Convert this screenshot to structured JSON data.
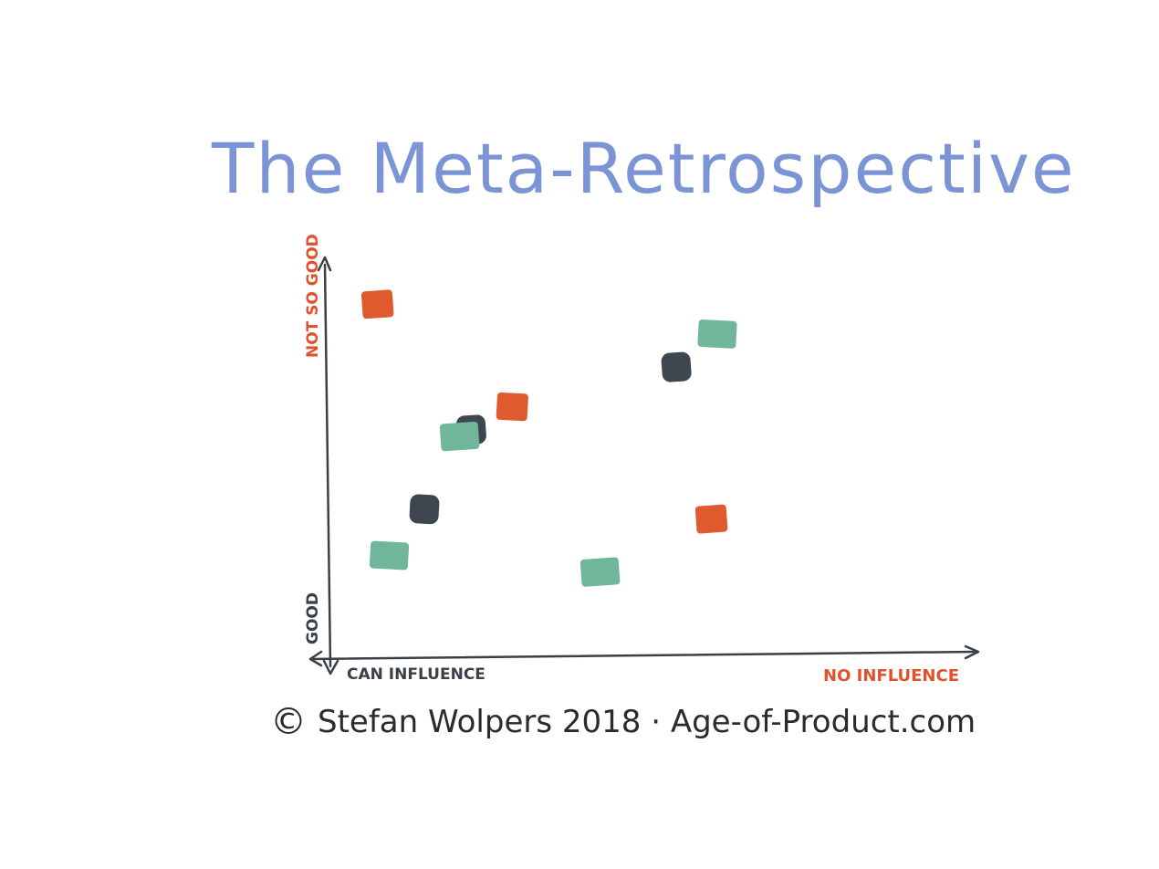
{
  "title": "The Meta-Retrospective",
  "copyright_symbol": "©",
  "credit": "Stefan Wolpers 2018 · Age-of-Product.com",
  "colors": {
    "title": "#7b94d6",
    "axis_label": "#e0522c",
    "axis_label_dark": "#3a4048",
    "orange": "#e05a30",
    "dark": "#3e4650",
    "green": "#6fb69a",
    "axis_line": "#3a4048"
  },
  "axes": {
    "y_top_label": "NOT SO GOOD",
    "y_bottom_label": "GOOD",
    "x_left_label": "CAN INFLUENCE",
    "x_right_label": "NO INFLUENCE"
  },
  "chart_data": {
    "type": "scatter",
    "xlabel_low": "CAN INFLUENCE",
    "xlabel_high": "NO INFLUENCE",
    "ylabel_low": "GOOD",
    "ylabel_high": "NOT SO GOOD",
    "xlim": [
      0,
      100
    ],
    "ylim": [
      0,
      100
    ],
    "series": [
      {
        "color": "orange",
        "points": [
          [
            4,
            93
          ],
          [
            27,
            62
          ],
          [
            61,
            28
          ]
        ]
      },
      {
        "color": "dark",
        "points": [
          [
            20,
            55
          ],
          [
            12,
            31
          ],
          [
            55,
            74
          ]
        ]
      },
      {
        "color": "green",
        "points": [
          [
            18,
            53
          ],
          [
            6,
            17
          ],
          [
            42,
            12
          ],
          [
            62,
            84
          ]
        ]
      }
    ]
  }
}
